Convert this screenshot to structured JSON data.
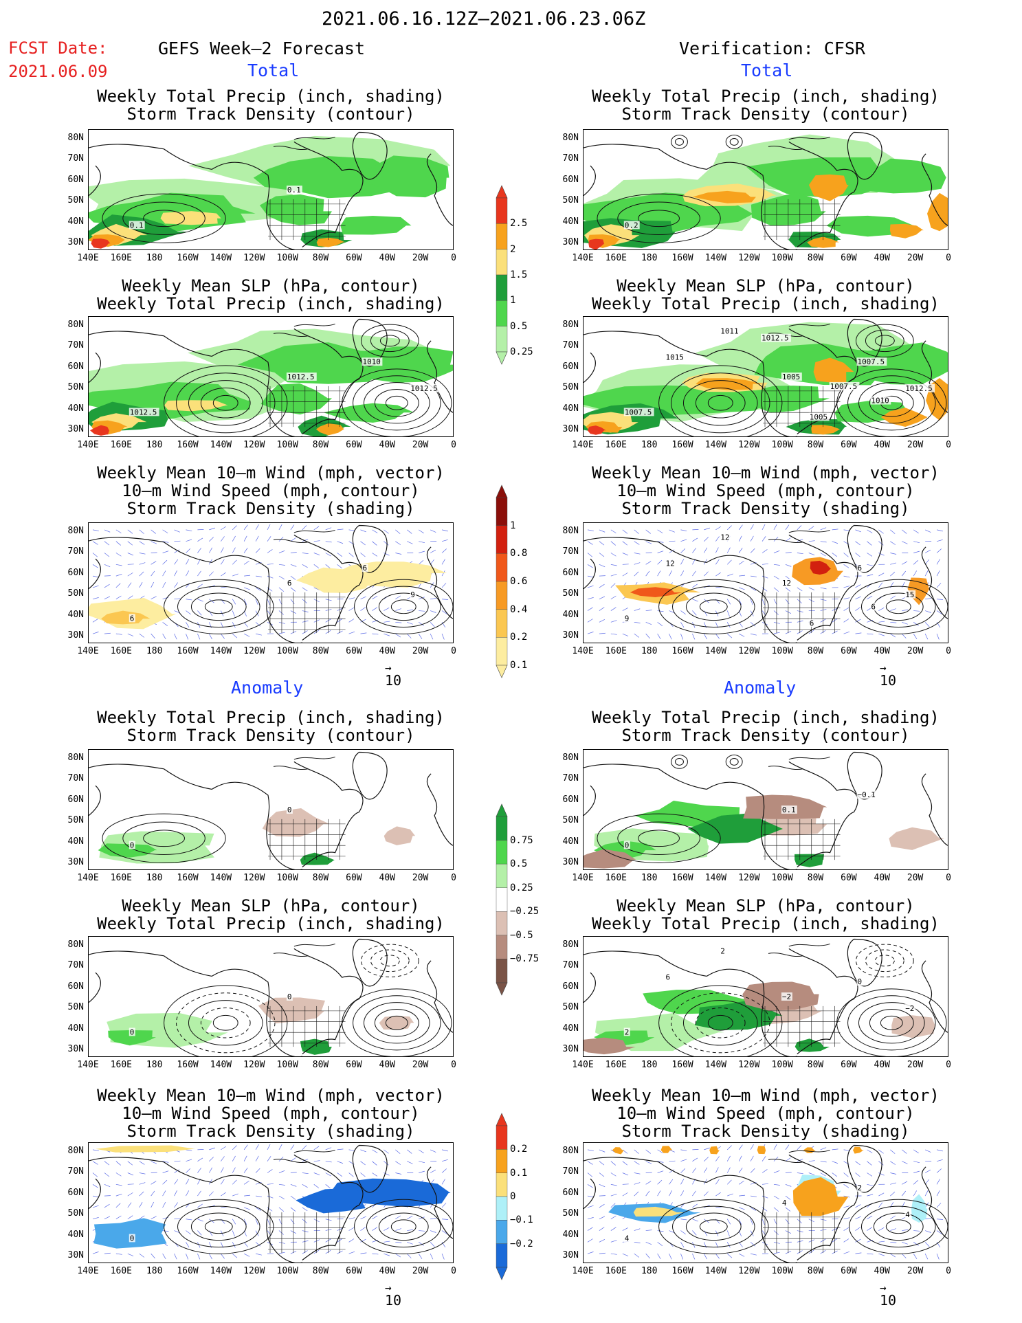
{
  "header": {
    "period": "2021.06.16.12Z–2021.06.23.06Z",
    "fcst_label": "FCST Date:",
    "fcst_date": "2021.06.09",
    "left_title": "GEFS Week–2 Forecast",
    "right_title": "Verification: CFSR"
  },
  "sections": {
    "total": "Total",
    "anomaly": "Anomaly"
  },
  "panel_titles": {
    "precip_storm": [
      "Weekly Total Precip (inch, shading)",
      "Storm Track Density (contour)"
    ],
    "slp_precip": [
      "Weekly Mean SLP (hPa, contour)",
      "Weekly Total Precip (inch, shading)"
    ],
    "wind_storm": [
      "Weekly Mean 10–m Wind (mph, vector)",
      "10–m Wind Speed (mph, contour)",
      "Storm Track Density (shading)"
    ]
  },
  "axes": {
    "lat_labels": [
      "80N",
      "70N",
      "60N",
      "50N",
      "40N",
      "30N"
    ],
    "lon_labels": [
      "140E",
      "160E",
      "180",
      "160W",
      "140W",
      "120W",
      "100W",
      "80W",
      "60W",
      "40W",
      "20W",
      "0"
    ]
  },
  "vector_ref": "10",
  "colorbars": {
    "precip_total": {
      "labels": [
        "2.5",
        "2",
        "1.5",
        "1",
        "0.5",
        "0.25"
      ],
      "colors": [
        "#e8361e",
        "#f7a21d",
        "#fbe07a",
        "#1f9e3a",
        "#4fd64d",
        "#b4f0a8"
      ]
    },
    "storm_total": {
      "labels": [
        "1",
        "0.8",
        "0.6",
        "0.4",
        "0.2",
        "0.1"
      ],
      "colors": [
        "#8b0f0a",
        "#d2200f",
        "#f0581a",
        "#f79a24",
        "#fbc751",
        "#fdeda0"
      ]
    },
    "precip_anom": {
      "labels": [
        "0.75",
        "0.5",
        "0.25",
        "−0.25",
        "−0.5",
        "−0.75"
      ],
      "colors": [
        "#1f9e3a",
        "#4fd64d",
        "#b4f0a8",
        "#ffffff",
        "#dcc0b4",
        "#b68c7e",
        "#7a5346"
      ]
    },
    "storm_anom": {
      "labels": [
        "0.2",
        "0.1",
        "0",
        "−0.1",
        "−0.2"
      ],
      "colors": [
        "#e8361e",
        "#f7a21d",
        "#fbe07a",
        "#aef0f8",
        "#4aa8ea",
        "#1a6ad8"
      ]
    }
  },
  "contour_labels": {
    "total_precip_left": [
      "0.1",
      "0.1"
    ],
    "total_precip_right": [
      "0.2"
    ],
    "total_slp_left": [
      "1012.5",
      "1012.5",
      "1010",
      "1012.5"
    ],
    "total_slp_right": [
      "1007.5",
      "1005",
      "1007.5",
      "1012.5",
      "1011",
      "1015",
      "1005",
      "1010",
      "1012.5",
      "1007.5"
    ],
    "total_wind_left": [
      "6",
      "6",
      "6",
      "9"
    ],
    "total_wind_right": [
      "9",
      "12",
      "6",
      "15",
      "12",
      "12",
      "6",
      "6"
    ],
    "anom_precip_left": [
      "0",
      "0"
    ],
    "anom_precip_right": [
      "0",
      "0.1",
      "−0.1"
    ],
    "anom_slp_left": [
      "0",
      "0"
    ],
    "anom_slp_right": [
      "2",
      "−2",
      "0",
      "−2",
      "2",
      "6"
    ],
    "anom_wind_left": [
      "0"
    ],
    "anom_wind_right": [
      "4",
      "4",
      "2",
      "4"
    ]
  },
  "colors": {
    "vector": "#5a6ae6",
    "contour": "#111111",
    "red_text": "#e62020",
    "blue_text": "#1a3cff"
  }
}
